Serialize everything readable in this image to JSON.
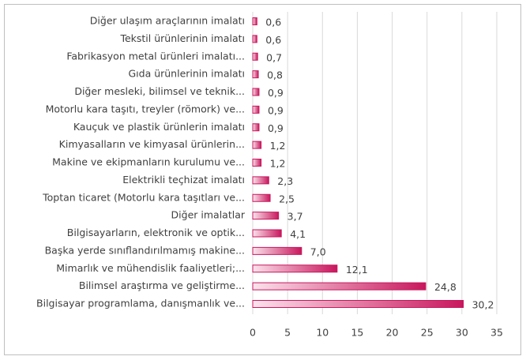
{
  "chart_data": {
    "type": "bar",
    "orientation": "horizontal",
    "categories": [
      "Diğer ulaşım araçlarının imalatı",
      "Tekstil ürünlerinin imalatı",
      "Fabrikasyon metal ürünleri imalatı...",
      "Gıda ürünlerinin imalatı",
      "Diğer mesleki, bilimsel ve teknik...",
      "Motorlu kara taşıtı, treyler (römork) ve...",
      "Kauçuk ve plastik ürünlerin imalatı",
      "Kimyasalların ve kimyasal ürünlerin...",
      "Makine ve ekipmanların kurulumu ve...",
      "Elektrikli teçhizat imalatı",
      "Toptan ticaret (Motorlu kara taşıtları ve...",
      "Diğer imalatlar",
      "Bilgisayarların, elektronik ve optik...",
      "Başka yerde sınıflandırılmamış makine...",
      "Mimarlık ve mühendislik faaliyetleri;...",
      "Bilimsel araştırma ve geliştirme...",
      "Bilgisayar programlama, danışmanlık ve..."
    ],
    "values": [
      0.6,
      0.6,
      0.7,
      0.8,
      0.9,
      0.9,
      0.9,
      1.2,
      1.2,
      2.3,
      2.5,
      3.7,
      4.1,
      7.0,
      12.1,
      24.8,
      30.2
    ],
    "value_labels": [
      "0,6",
      "0,6",
      "0,7",
      "0,8",
      "0,9",
      "0,9",
      "0,9",
      "1,2",
      "1,2",
      "2,3",
      "2,5",
      "3,7",
      "4,1",
      "7,0",
      "12,1",
      "24,8",
      "30,2"
    ],
    "color": "#c8175d",
    "xlim": [
      0,
      35
    ],
    "xticks": [
      0,
      5,
      10,
      15,
      20,
      25,
      30,
      35
    ],
    "grid": true
  }
}
